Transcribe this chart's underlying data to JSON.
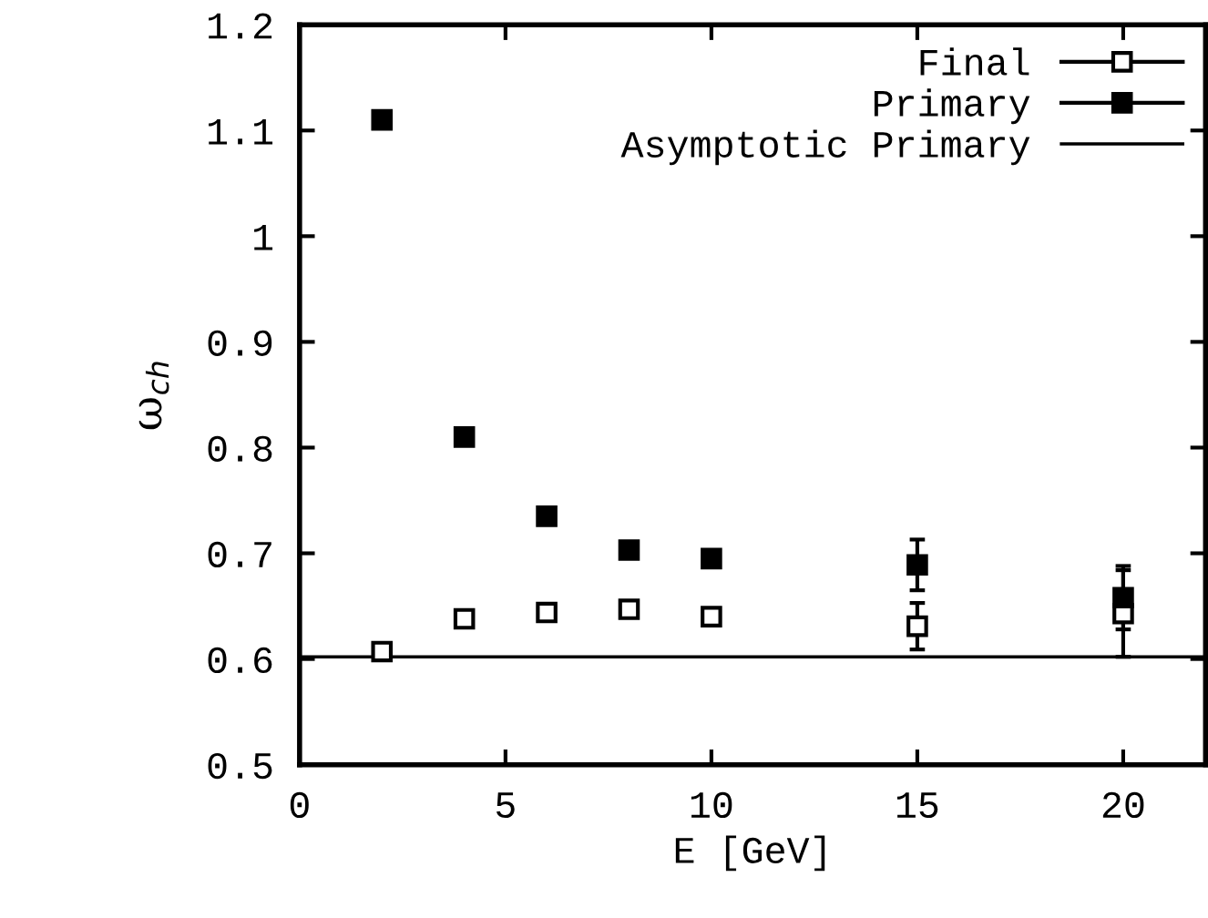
{
  "chart_data": {
    "type": "scatter",
    "xlabel": "E [GeV]",
    "ylabel": "ω$_{ch}$",
    "x": [
      2,
      4,
      6,
      8,
      10,
      15,
      20
    ],
    "series": [
      {
        "name": "Final",
        "color": "#000000",
        "marker": "square",
        "values": [
          0.607,
          0.638,
          0.644,
          0.647,
          0.64,
          0.631,
          0.643
        ],
        "errors": [
          0.005,
          0.005,
          0.006,
          0.006,
          0.007,
          0.022,
          0.041
        ]
      },
      {
        "name": "Primary",
        "color": "#000000",
        "marker": "square",
        "values": [
          1.11,
          0.81,
          0.735,
          0.703,
          0.695,
          0.689,
          0.658
        ],
        "errors": [
          null,
          null,
          null,
          null,
          null,
          0.024,
          0.03
        ]
      },
      {
        "name": "Asymptotic Primary",
        "type": "line",
        "color": "#000000",
        "marker": "none",
        "line_style": "solid",
        "x": [
          0,
          22
        ],
        "values": [
          0.602,
          0.602
        ]
      }
    ],
    "xlim": [
      0,
      22
    ],
    "xticks": [
      0,
      5,
      10,
      15,
      20
    ],
    "ylim": [
      0.5,
      1.2
    ],
    "yticks": [
      0.5,
      0.6,
      0.7,
      0.8,
      0.9,
      1,
      1.1,
      1.2
    ],
    "grid": false,
    "legend": "top right"
  }
}
